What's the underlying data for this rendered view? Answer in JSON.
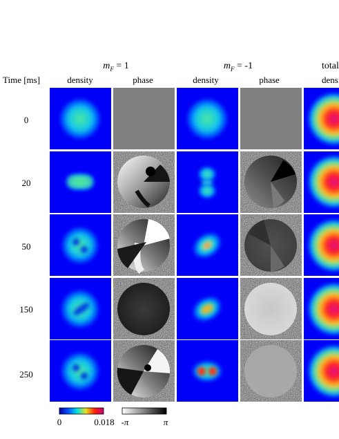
{
  "figure": {
    "groups": [
      {
        "key": "mf_plus",
        "prefix": "m",
        "sub": "F",
        "suffix": " = 1"
      },
      {
        "key": "mf_minus",
        "prefix": "m",
        "sub": "F",
        "suffix": " = -1"
      },
      {
        "key": "total",
        "label": "total"
      }
    ],
    "row_header": "Time [ms]",
    "column_labels": [
      "density",
      "phase",
      "density",
      "phase",
      "density"
    ],
    "times": [
      "0",
      "20",
      "50",
      "150",
      "250"
    ],
    "colorbars": {
      "density": {
        "min_label": "0",
        "max_label": "0.018",
        "min": 0,
        "max": 0.018,
        "colors": [
          "#0000a0",
          "#0050ff",
          "#00e0e0",
          "#e8e020",
          "#ff2000",
          "#c00080"
        ]
      },
      "phase": {
        "min_label": "-π",
        "max_label": "π",
        "colors": [
          "#ffffff",
          "#000000"
        ]
      }
    },
    "panel_colors": {
      "background_density": "#0000f8",
      "phase_uniform": "#808080"
    }
  }
}
